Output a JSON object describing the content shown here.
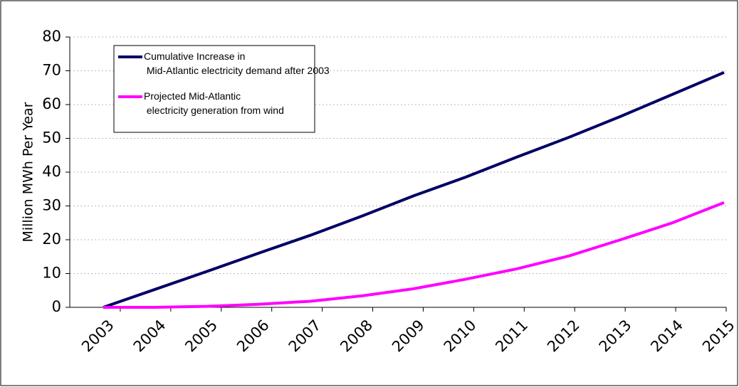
{
  "chart_data": {
    "type": "line",
    "y_label": "Million MWh Per Year",
    "categories": [
      "2003",
      "2004",
      "2005",
      "2006",
      "2007",
      "2008",
      "2009",
      "2010",
      "2011",
      "2012",
      "2013",
      "2014",
      "2015"
    ],
    "series": [
      {
        "name": "Cumulative Increase in Mid-Atlantic electricity demand after 2003",
        "color": "#000066",
        "values": [
          0,
          5.3,
          10.6,
          16,
          21.3,
          27,
          33,
          38.5,
          44.5,
          50.3,
          56.5,
          63,
          69.5
        ]
      },
      {
        "name": "Projected Mid-Atlantic electricity generation from wind",
        "color": "#ff00ff",
        "values": [
          0,
          0,
          0.3,
          0.9,
          1.8,
          3.4,
          5.5,
          8.3,
          11.4,
          15.2,
          20,
          25,
          31
        ]
      }
    ],
    "ylim": [
      0,
      80
    ],
    "yticks": [
      0,
      10,
      20,
      30,
      40,
      50,
      60,
      70,
      80
    ],
    "grid": true,
    "legend": "top-left"
  }
}
